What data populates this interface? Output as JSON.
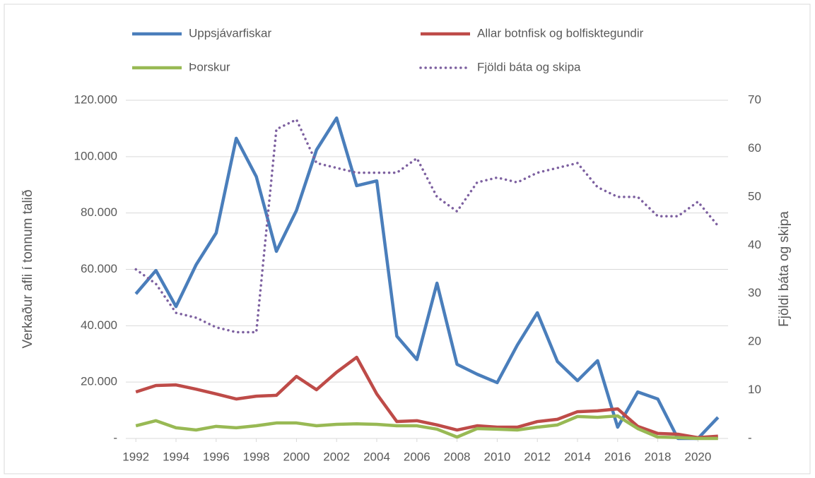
{
  "chart_data": {
    "type": "line",
    "y_label": "Verkaður afli í tonnum talið",
    "y2_label": "Fjöldi báta og skipa",
    "x": [
      1992,
      1993,
      1994,
      1995,
      1996,
      1997,
      1998,
      1999,
      2000,
      2001,
      2002,
      2003,
      2004,
      2005,
      2006,
      2007,
      2008,
      2009,
      2010,
      2011,
      2012,
      2013,
      2014,
      2015,
      2016,
      2017,
      2018,
      2019,
      2020,
      2021
    ],
    "xlim": [
      1991.5,
      2021.5
    ],
    "xticks": [
      1992,
      1994,
      1996,
      1998,
      2000,
      2002,
      2004,
      2006,
      2008,
      2010,
      2012,
      2014,
      2016,
      2018,
      2020
    ],
    "ylim": [
      0,
      120000
    ],
    "yticks": [
      {
        "value": 0,
        "label": "-"
      },
      {
        "value": 20000,
        "label": "20.000"
      },
      {
        "value": 40000,
        "label": "40.000"
      },
      {
        "value": 60000,
        "label": "60.000"
      },
      {
        "value": 80000,
        "label": "80.000"
      },
      {
        "value": 100000,
        "label": "100.000"
      },
      {
        "value": 120000,
        "label": "120.000"
      }
    ],
    "y2lim": [
      0,
      70
    ],
    "y2ticks": [
      {
        "value": 0,
        "label": "-"
      },
      10,
      20,
      30,
      40,
      50,
      60,
      70
    ],
    "grid": true,
    "legend": "top",
    "series": [
      {
        "name": "Uppsjávarfiskar",
        "color": "#4a7ebb",
        "values": [
          51300,
          59600,
          46800,
          61600,
          72900,
          106500,
          92900,
          66400,
          80900,
          102400,
          113700,
          89700,
          91400,
          36300,
          28000,
          55100,
          26300,
          22800,
          19800,
          33100,
          44600,
          27300,
          20500,
          27600,
          4000,
          16500,
          14000,
          0,
          0,
          7500
        ]
      },
      {
        "name": "Allar botnfisk og bolfisktegundir",
        "color": "#be4b48",
        "values": [
          16500,
          18800,
          19000,
          17500,
          15800,
          14000,
          15000,
          15300,
          22000,
          17300,
          23500,
          28800,
          15800,
          6000,
          6300,
          4800,
          3000,
          4500,
          4000,
          4000,
          6000,
          6800,
          9500,
          9800,
          10500,
          4300,
          1800,
          1500,
          300,
          800
        ]
      },
      {
        "name": "Þorskur",
        "color": "#98b954",
        "values": [
          4500,
          6300,
          3800,
          3000,
          4300,
          3800,
          4500,
          5500,
          5500,
          4500,
          5000,
          5200,
          5000,
          4500,
          4500,
          3300,
          500,
          3500,
          3300,
          3000,
          4000,
          4800,
          7800,
          7500,
          8000,
          3500,
          500,
          300,
          0,
          0
        ]
      },
      {
        "name": "Fjöldi báta og skipa",
        "color": "#7d60a0",
        "axis": "y2",
        "dashed": true,
        "values": [
          35,
          32,
          26,
          25,
          23,
          22,
          22,
          64,
          66,
          57,
          56,
          55,
          55,
          55,
          58,
          50,
          47,
          53,
          54,
          53,
          55,
          56,
          57,
          52,
          50,
          50,
          46,
          46,
          49,
          44
        ]
      }
    ]
  }
}
